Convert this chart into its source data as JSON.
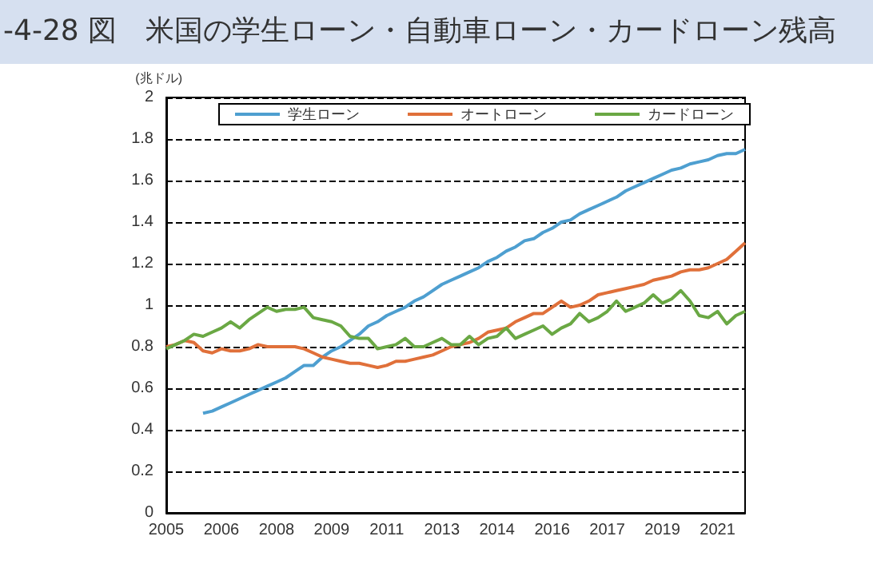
{
  "chart_data": {
    "type": "line",
    "title": "-4-28 図　米国の学生ローン・自動車ローン・カードローン残高",
    "ylabel": "(兆ドル)",
    "categories": [
      "2005",
      null,
      null,
      null,
      null,
      null,
      "2006",
      null,
      null,
      null,
      null,
      null,
      "2008",
      null,
      null,
      null,
      null,
      null,
      "2009",
      null,
      null,
      null,
      null,
      null,
      "2011",
      null,
      null,
      null,
      null,
      null,
      "2013",
      null,
      null,
      null,
      null,
      null,
      "2014",
      null,
      null,
      null,
      null,
      null,
      "2016",
      null,
      null,
      null,
      null,
      null,
      "2017",
      null,
      null,
      null,
      null,
      null,
      "2019",
      null,
      null,
      null,
      null,
      null,
      "2021",
      null,
      null,
      null
    ],
    "series": [
      {
        "name": "学生ローン",
        "color": "#4e9fd0",
        "values": [
          null,
          null,
          null,
          null,
          0.48,
          0.49,
          0.51,
          0.53,
          0.55,
          0.57,
          0.59,
          0.61,
          0.63,
          0.65,
          0.68,
          0.71,
          0.71,
          0.75,
          0.78,
          0.8,
          0.83,
          0.86,
          0.9,
          0.92,
          0.95,
          0.97,
          0.99,
          1.02,
          1.04,
          1.07,
          1.1,
          1.12,
          1.14,
          1.16,
          1.18,
          1.21,
          1.23,
          1.26,
          1.28,
          1.31,
          1.32,
          1.35,
          1.37,
          1.4,
          1.41,
          1.44,
          1.46,
          1.48,
          1.5,
          1.52,
          1.55,
          1.57,
          1.59,
          1.61,
          1.63,
          1.65,
          1.66,
          1.68,
          1.69,
          1.7,
          1.72,
          1.73,
          1.73,
          1.75
        ]
      },
      {
        "name": "オートローン",
        "color": "#e0703a",
        "values": [
          0.8,
          0.81,
          0.83,
          0.82,
          0.78,
          0.77,
          0.79,
          0.78,
          0.78,
          0.79,
          0.81,
          0.8,
          0.8,
          0.8,
          0.8,
          0.79,
          0.77,
          0.75,
          0.74,
          0.73,
          0.72,
          0.72,
          0.71,
          0.7,
          0.71,
          0.73,
          0.73,
          0.74,
          0.75,
          0.76,
          0.78,
          0.8,
          0.81,
          0.82,
          0.84,
          0.87,
          0.88,
          0.89,
          0.92,
          0.94,
          0.96,
          0.96,
          0.99,
          1.02,
          0.99,
          1.0,
          1.02,
          1.05,
          1.06,
          1.07,
          1.08,
          1.09,
          1.1,
          1.12,
          1.13,
          1.14,
          1.16,
          1.17,
          1.17,
          1.18,
          1.2,
          1.22,
          1.26,
          1.3
        ]
      },
      {
        "name": "カードローン",
        "color": "#6aa844",
        "values": [
          0.79,
          0.81,
          0.83,
          0.86,
          0.85,
          0.87,
          0.89,
          0.92,
          0.89,
          0.93,
          0.96,
          0.99,
          0.97,
          0.98,
          0.98,
          0.99,
          0.94,
          0.93,
          0.92,
          0.9,
          0.85,
          0.84,
          0.84,
          0.79,
          0.8,
          0.81,
          0.84,
          0.8,
          0.8,
          0.82,
          0.84,
          0.81,
          0.81,
          0.85,
          0.81,
          0.84,
          0.85,
          0.89,
          0.84,
          0.86,
          0.88,
          0.9,
          0.86,
          0.89,
          0.91,
          0.96,
          0.92,
          0.94,
          0.97,
          1.02,
          0.97,
          0.99,
          1.01,
          1.05,
          1.01,
          1.03,
          1.07,
          1.02,
          0.95,
          0.94,
          0.97,
          0.91,
          0.95,
          0.97
        ]
      }
    ],
    "ylim": [
      0,
      2
    ],
    "yticks": [
      0,
      0.2,
      0.4,
      0.6,
      0.8,
      1,
      1.2,
      1.4,
      1.6,
      1.8,
      2
    ],
    "grid": "y",
    "legend": "top",
    "marker": "none",
    "line_style": "solid"
  }
}
